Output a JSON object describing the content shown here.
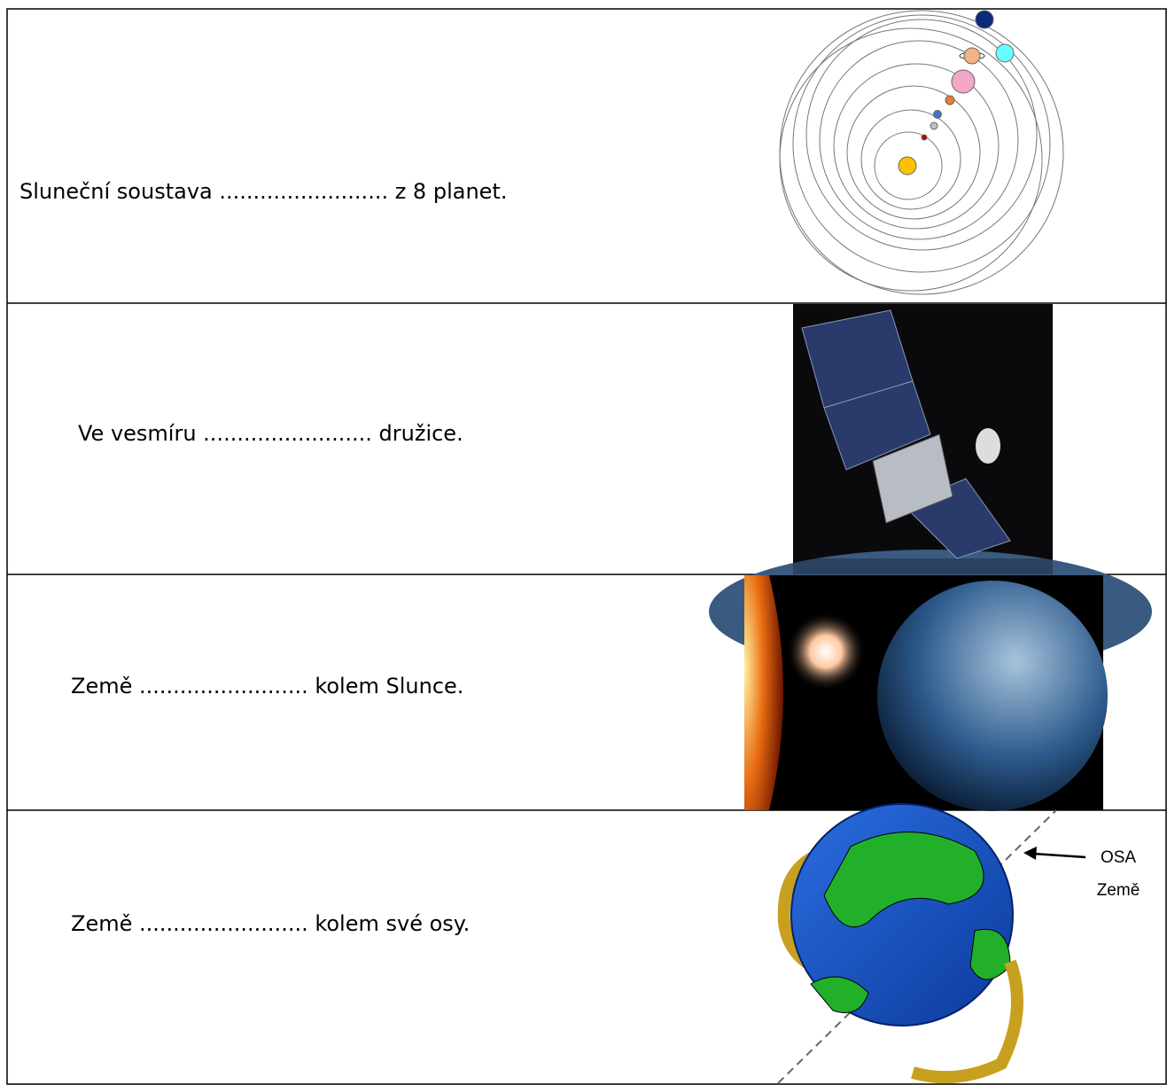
{
  "rows": [
    {
      "text": "Sluneční soustava ......................... z 8 planet."
    },
    {
      "text": "Ve vesmíru ......................... družice."
    },
    {
      "text": "Země ......................... kolem Slunce."
    },
    {
      "text": "Země ......................... kolem své osy."
    }
  ],
  "axis_label": {
    "line1": "OSA",
    "line2": "Země"
  }
}
